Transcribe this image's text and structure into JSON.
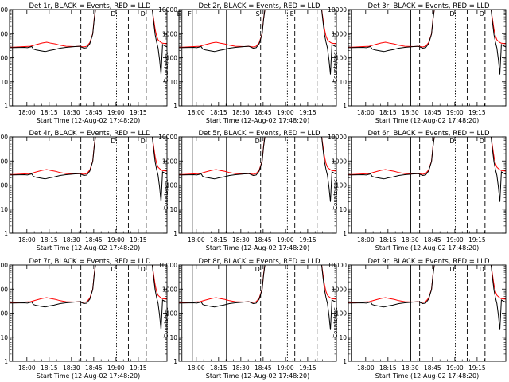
{
  "panels": [
    {
      "title": "Det 1r, BLACK = Events, RED = LLD",
      "layout": "a",
      "markers": [
        "",
        "",
        "",
        "D",
        "",
        "D",
        ""
      ]
    },
    {
      "title": "Det 2r, BLACK = Events, RED = LLD",
      "layout": "b",
      "markers": [
        "E",
        "F",
        "",
        "S",
        "",
        "E",
        ""
      ]
    },
    {
      "title": "Det 3r, BLACK = Events, RED = LLD",
      "layout": "a",
      "markers": [
        "",
        "",
        "",
        "D",
        "",
        "D",
        ""
      ]
    },
    {
      "title": "Det 4r, BLACK = Events, RED = LLD",
      "layout": "a",
      "markers": [
        "",
        "",
        "",
        "D",
        "",
        "D",
        ""
      ]
    },
    {
      "title": "Det 5r, BLACK = Events, RED = LLD",
      "layout": "b",
      "markers": [
        "",
        "",
        "",
        "D",
        "",
        "",
        ""
      ]
    },
    {
      "title": "Det 6r, BLACK = Events, RED = LLD",
      "layout": "a",
      "markers": [
        "",
        "",
        "",
        "D",
        "",
        "D",
        ""
      ]
    },
    {
      "title": "Det 7r, BLACK = Events, RED = LLD",
      "layout": "a",
      "markers": [
        "",
        "",
        "",
        "D",
        "",
        "D",
        ""
      ]
    },
    {
      "title": "Det 8r, BLACK = Events, RED = LLD",
      "layout": "b",
      "markers": [
        "",
        "",
        "",
        "D",
        "",
        "",
        ""
      ]
    },
    {
      "title": "Det 9r, BLACK = Events, RED = LLD",
      "layout": "a",
      "markers": [
        "",
        "",
        "",
        "D",
        "",
        "D",
        ""
      ]
    }
  ],
  "chart_data": {
    "type": "line",
    "yscale": "log",
    "ylabel": "Counts/sec",
    "xlabel": "Start Time (12-Aug-02 17:48:20)",
    "ylim": [
      1,
      10000
    ],
    "xlim_minutes": [
      0,
      106
    ],
    "x_ticks": [
      "18:00",
      "18:15",
      "18:30",
      "18:45",
      "19:00",
      "19:15"
    ],
    "y_ticks": [
      "1",
      "10",
      "100",
      "1000",
      "10000"
    ],
    "legend": "BLACK = Events, RED = LLD",
    "series": [
      {
        "name": "Events",
        "color": "#000000",
        "x": [
          0,
          10,
          12,
          15,
          16,
          18,
          22,
          24,
          27,
          30,
          34,
          38,
          44,
          47,
          50,
          52,
          54,
          56,
          57,
          58,
          62,
          68,
          69,
          70,
          71,
          72,
          74,
          76,
          78,
          80,
          85,
          93,
          94,
          95,
          96,
          97,
          98,
          99,
          100,
          101,
          102,
          103,
          106
        ],
        "y": [
          260,
          270,
          260,
          290,
          230,
          210,
          190,
          180,
          200,
          215,
          250,
          270,
          290,
          300,
          250,
          260,
          380,
          950,
          4000,
          12000,
          12000,
          12000,
          12000,
          12000,
          12000,
          12000,
          12000,
          12000,
          12000,
          12000,
          12000,
          12000,
          12000,
          12000,
          12000,
          3000,
          900,
          450,
          250,
          80,
          20,
          350,
          280
        ]
      },
      {
        "name": "LLD",
        "color": "#ff0000",
        "x": [
          0,
          10,
          14,
          18,
          22,
          25,
          28,
          31,
          34,
          38,
          44,
          47,
          50,
          52,
          54,
          56,
          57,
          58,
          62,
          68,
          69,
          70,
          71,
          72,
          74,
          76,
          78,
          80,
          85,
          93,
          94,
          95,
          96,
          97,
          98,
          99,
          100,
          101,
          102,
          103,
          106
        ],
        "y": [
          270,
          290,
          300,
          350,
          410,
          440,
          400,
          370,
          330,
          300,
          290,
          300,
          280,
          300,
          420,
          1000,
          4500,
          12000,
          12000,
          12000,
          12000,
          12000,
          12000,
          12000,
          12000,
          12000,
          12000,
          12000,
          12000,
          12000,
          12000,
          12000,
          12000,
          4000,
          1500,
          800,
          550,
          480,
          430,
          400,
          380
        ]
      }
    ]
  }
}
